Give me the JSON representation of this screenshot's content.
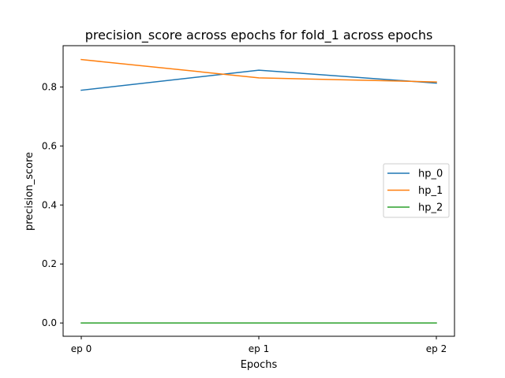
{
  "chart_data": {
    "type": "line",
    "title": "precision_score across epochs for fold_1 across epochs",
    "xlabel": "Epochs",
    "ylabel": "precision_score",
    "categories": [
      "ep 0",
      "ep 1",
      "ep 2"
    ],
    "ylim": [
      -0.045,
      0.94
    ],
    "yticks": [
      0.0,
      0.2,
      0.4,
      0.6,
      0.8
    ],
    "ytick_labels": [
      "0.0",
      "0.2",
      "0.4",
      "0.6",
      "0.8"
    ],
    "grid": false,
    "legend_position": "center-right",
    "series": [
      {
        "name": "hp_0",
        "color": "#1f77b4",
        "values": [
          0.789,
          0.857,
          0.813
        ]
      },
      {
        "name": "hp_1",
        "color": "#ff7f0e",
        "values": [
          0.893,
          0.831,
          0.817
        ]
      },
      {
        "name": "hp_2",
        "color": "#2ca02c",
        "values": [
          0.0,
          0.0,
          0.0
        ]
      }
    ]
  }
}
